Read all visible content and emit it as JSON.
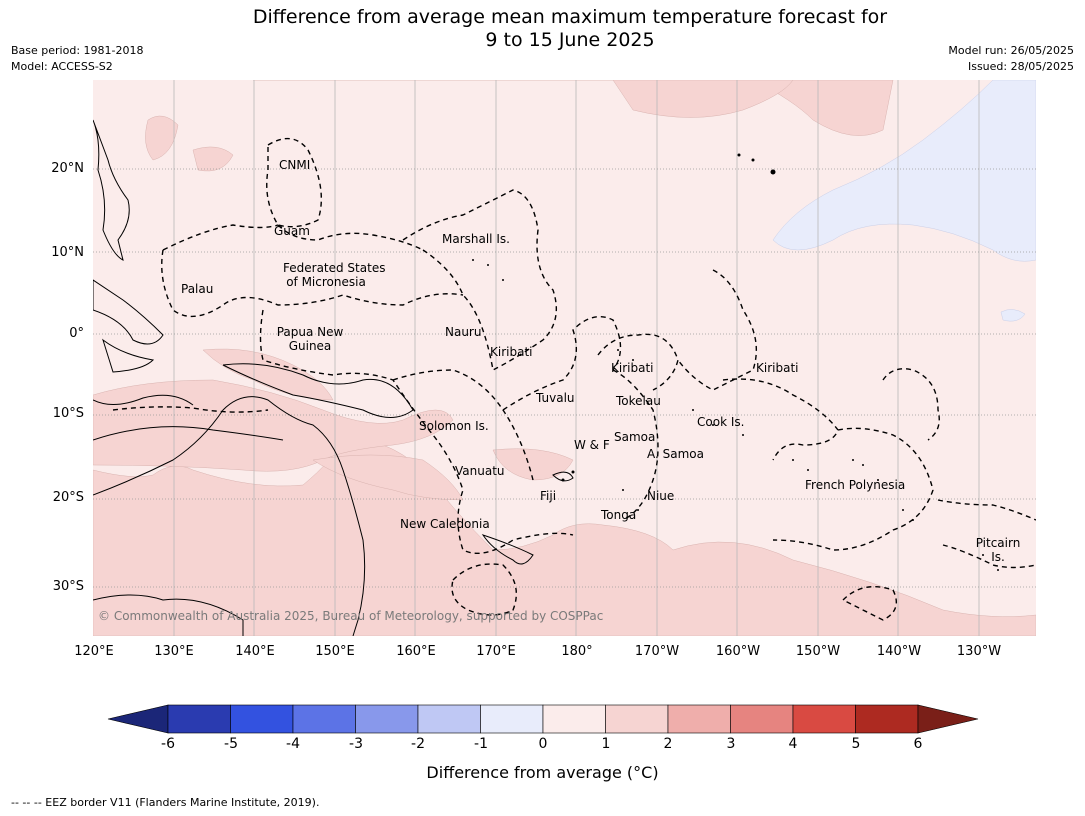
{
  "title_line1": "Difference from average mean maximum temperature forecast for",
  "title_line2": "9 to 15 June 2025",
  "base_period": "Base period: 1981-2018",
  "model": "Model: ACCESS-S2",
  "model_run": "Model run: 26/05/2025",
  "issued": "Issued: 28/05/2025",
  "lat_labels": [
    "20°N",
    "10°N",
    "0°",
    "10°S",
    "20°S",
    "30°S"
  ],
  "lon_labels": [
    "120°E",
    "130°E",
    "140°E",
    "150°E",
    "160°E",
    "170°E",
    "180°",
    "170°W",
    "160°W",
    "150°W",
    "140°W",
    "130°W"
  ],
  "places": {
    "cnmi": "CNMI",
    "guam": "Guam",
    "marshall": "Marshall Is.",
    "fsm1": "Federated States",
    "fsm2": "of Micronesia",
    "palau": "Palau",
    "png1": "Papua New",
    "png2": "Guinea",
    "nauru": "Nauru",
    "kiribati_w": "Kiribati",
    "kiribati_c": "Kiribati",
    "kiribati_e": "Kiribati",
    "tuvalu": "Tuvalu",
    "tokelau": "Tokelau",
    "cook": "Cook Is.",
    "solomon": "Solomon Is.",
    "samoa": "Samoa",
    "wf": "W & F",
    "asamoa": "A. Samoa",
    "vanuatu": "Vanuatu",
    "fiji": "Fiji",
    "niue": "Niue",
    "tonga": "Tonga",
    "frenchpoly": "French Polynesia",
    "newcal": "New Caledonia",
    "pitcairn1": "Pitcairn",
    "pitcairn2": "Is."
  },
  "copyright": "© Commonwealth of Australia 2025, Bureau of Meteorology, supported by COSPPac",
  "colorbar": {
    "ticks": [
      "-6",
      "-5",
      "-4",
      "-3",
      "-2",
      "-1",
      "0",
      "1",
      "2",
      "3",
      "4",
      "5",
      "6"
    ],
    "colors": [
      "#2a3bb0",
      "#3352e0",
      "#5c73e6",
      "#8898eb",
      "#bfc8f4",
      "#e8ecfb",
      "#fbeceb",
      "#f6d4d2",
      "#efaeab",
      "#e68480",
      "#d94a42",
      "#ad2a21"
    ],
    "low_color": "#1b2678",
    "high_color": "#7a1f18",
    "label": "Difference from average (°C)"
  },
  "map_colors": {
    "background": "#fbeceb",
    "warm": "#f6d4d2",
    "cool": "#e8ecfb"
  },
  "footnote": "--  --  -- EEZ border V11 (Flanders Marine Institute, 2019)."
}
